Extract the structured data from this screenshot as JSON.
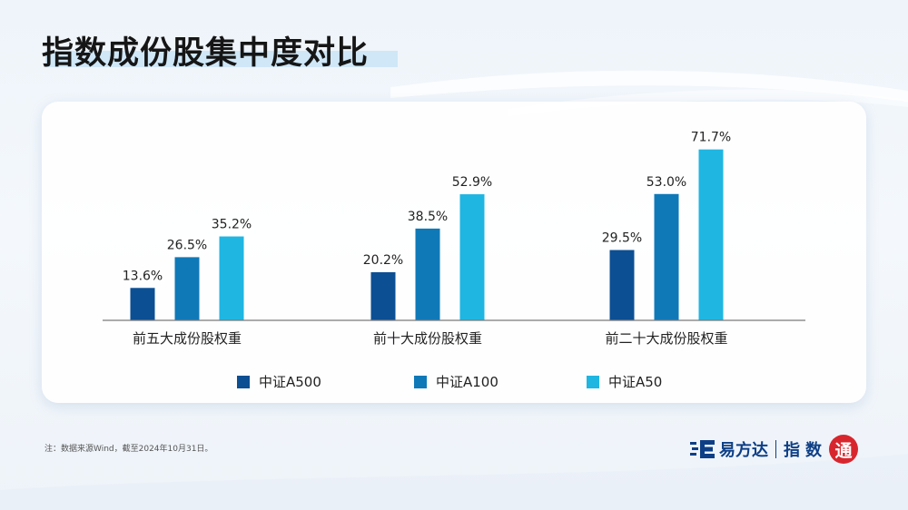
{
  "header": {
    "title": "指数成份股集中度对比"
  },
  "chart_data": {
    "type": "bar",
    "categories": [
      "前五大成份股权重",
      "前十大成份股权重",
      "前二十大成份股权重"
    ],
    "series": [
      {
        "name": "中证A500",
        "values": [
          13.6,
          20.2,
          29.5
        ],
        "labels": [
          "13.6%",
          "20.2%",
          "29.5%"
        ],
        "color": "#0c4f93"
      },
      {
        "name": "中证A100",
        "values": [
          26.5,
          38.5,
          53.0
        ],
        "labels": [
          "26.5%",
          "38.5%",
          "53.0%"
        ],
        "color": "#0f79b8"
      },
      {
        "name": "中证A50",
        "values": [
          35.2,
          52.9,
          71.7
        ],
        "labels": [
          "35.2%",
          "52.9%",
          "71.7%"
        ],
        "color": "#1fb6e2"
      }
    ],
    "title": "",
    "xlabel": "",
    "ylabel": "",
    "ylim": [
      0,
      75
    ],
    "grid": false,
    "legend_position": "bottom"
  },
  "footer": {
    "note": "注：数据来源Wind，截至2024年10月31日。",
    "brand_name": "易方达",
    "brand_sub": "指数",
    "brand_seal": "通",
    "brand_icon": "efunds-logo-icon"
  }
}
